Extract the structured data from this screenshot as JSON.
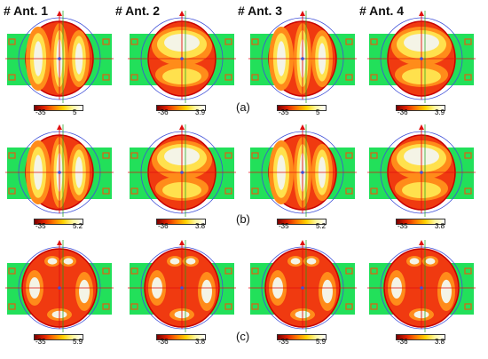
{
  "antenna_labels": [
    "# Ant. 1",
    "# Ant. 2",
    "# Ant. 3",
    "# Ant. 4"
  ],
  "row_labels": [
    "(a)",
    "(b)",
    "(c)"
  ],
  "colorbars": [
    [
      {
        "min": "-35",
        "max": "5"
      },
      {
        "min": "-36",
        "max": "3.9"
      },
      {
        "min": "-35",
        "max": "5"
      },
      {
        "min": "-36",
        "max": "3.9"
      }
    ],
    [
      {
        "min": "-35",
        "max": "5.2"
      },
      {
        "min": "-36",
        "max": "3.8"
      },
      {
        "min": "-35",
        "max": "5.2"
      },
      {
        "min": "-35",
        "max": "3.8"
      }
    ],
    [
      {
        "min": "-35",
        "max": "5.9"
      },
      {
        "min": "-36",
        "max": "3.8"
      },
      {
        "min": "-35",
        "max": "5.9"
      },
      {
        "min": "-36",
        "max": "3.8"
      }
    ]
  ],
  "colors": {
    "board": "#22e05a",
    "pattern_dark": "#c60000",
    "pattern_red": "#f03a10",
    "pattern_orange": "#ff8c1a",
    "pattern_yellow": "#ffe14d",
    "pattern_light": "#f4f4e6",
    "circle": "#3f4fd8",
    "axis_red": "#e01010",
    "axis_green": "#18a018",
    "port": "#e06010"
  }
}
